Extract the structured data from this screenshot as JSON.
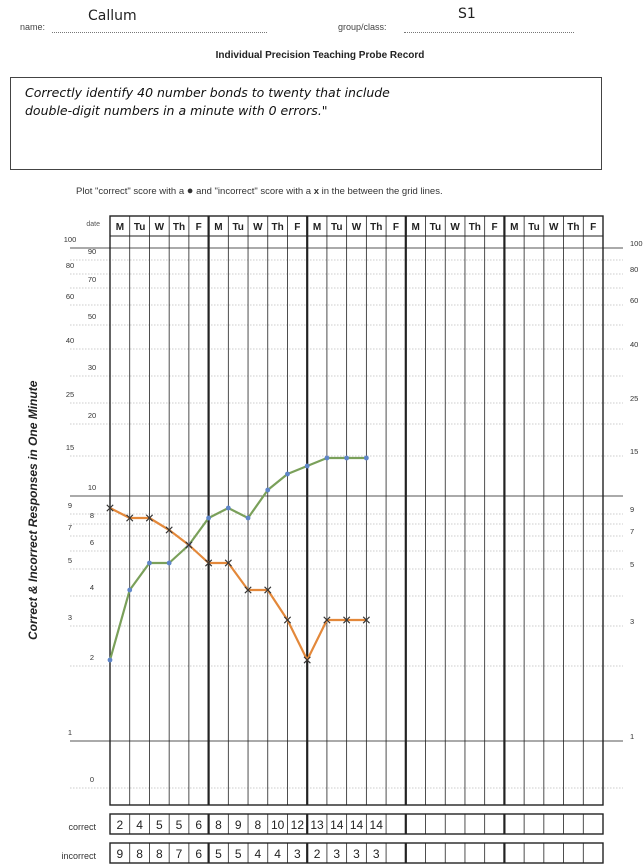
{
  "header": {
    "name_label": "name:",
    "name_value": "Callum",
    "group_label": "group/class:",
    "group_value": "S1",
    "title": "Individual Precision Teaching Probe Record"
  },
  "objective": {
    "line1": "Correctly identify 40 number bonds to twenty that include",
    "line2": "double-digit numbers in a minute with 0 errors.\""
  },
  "instructions": {
    "before_dot": "Plot \"correct\" score with a",
    "middle": "and \"incorrect\" score with a",
    "x_mark": "x",
    "after": "in the between the grid lines."
  },
  "axis": {
    "ylabel": "Correct & Incorrect Responses in One Minute",
    "date_label": "date",
    "ticks_left": [
      "100",
      "90",
      "80",
      "70",
      "60",
      "50",
      "40",
      "30",
      "25",
      "20",
      "15",
      "10",
      "9",
      "8",
      "7",
      "6",
      "5",
      "4",
      "3",
      "2",
      "1",
      "0"
    ],
    "ticks_right": [
      "100",
      "80",
      "60",
      "40",
      "25",
      "15",
      "9",
      "7",
      "5",
      "3",
      "1"
    ]
  },
  "chart_data": {
    "type": "line",
    "title": "Individual Precision Teaching Probe Record",
    "ylabel": "Correct & Incorrect Responses in One Minute",
    "xlabel": "",
    "y_scale": "log",
    "grid": true,
    "weeks": 5,
    "days": [
      "M",
      "Tu",
      "W",
      "Th",
      "F",
      "M",
      "Tu",
      "W",
      "Th",
      "F",
      "M",
      "Tu",
      "W",
      "Th",
      "F",
      "M",
      "Tu",
      "W",
      "Th",
      "F",
      "M",
      "Tu",
      "W",
      "Th",
      "F"
    ],
    "series": [
      {
        "name": "correct",
        "marker": "dot",
        "color": "#7aa05a",
        "values": [
          2,
          4,
          5,
          5,
          6,
          8,
          9,
          8,
          10,
          12,
          13,
          14,
          14,
          14
        ]
      },
      {
        "name": "incorrect",
        "marker": "x",
        "color": "#e3883a",
        "values": [
          9,
          8,
          8,
          7,
          6,
          5,
          5,
          4,
          4,
          3,
          2,
          3,
          3,
          3
        ]
      }
    ]
  },
  "table": {
    "correct_label": "correct",
    "incorrect_label": "incorrect",
    "correct": [
      "2",
      "4",
      "5",
      "5",
      "6",
      "8",
      "9",
      "8",
      "10",
      "12",
      "13",
      "14",
      "14",
      "14"
    ],
    "incorrect": [
      "9",
      "8",
      "8",
      "7",
      "6",
      "5",
      "5",
      "4",
      "4",
      "3",
      "2",
      "3",
      "3",
      "3"
    ]
  }
}
